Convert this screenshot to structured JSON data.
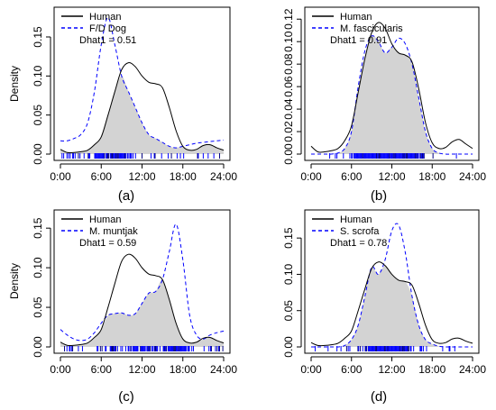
{
  "figure": {
    "panel_labels": [
      "(a)",
      "(b)",
      "(c)",
      "(d)"
    ],
    "colors": {
      "human": "#000000",
      "species": "#0000ff",
      "overlap_fill": "#d3d3d3",
      "rug": "#0000ff"
    }
  },
  "chart_data": [
    {
      "type": "line",
      "ylabel": "Density",
      "xticks": [
        "0:00",
        "6:00",
        "12:00",
        "18:00",
        "24:00"
      ],
      "xlim": [
        0,
        24
      ],
      "ylim": [
        0,
        0.18
      ],
      "yticks": [
        0.0,
        0.05,
        0.1,
        0.15
      ],
      "ytick_labels": [
        "0.00",
        "0.05",
        "0.10",
        "0.15"
      ],
      "legend": [
        "Human",
        "F/D Dog",
        "Dhat1 = 0.51"
      ],
      "grid": false,
      "x": [
        0,
        1,
        2,
        3,
        4,
        5,
        6,
        7,
        8,
        9,
        10,
        11,
        12,
        13,
        14,
        15,
        16,
        17,
        18,
        19,
        20,
        21,
        22,
        23,
        24
      ],
      "series": [
        {
          "name": "Human",
          "values": [
            0.006,
            0.002,
            0.002,
            0.003,
            0.005,
            0.012,
            0.022,
            0.05,
            0.08,
            0.108,
            0.117,
            0.112,
            0.1,
            0.092,
            0.09,
            0.085,
            0.06,
            0.03,
            0.01,
            0.005,
            0.006,
            0.011,
            0.012,
            0.008,
            0.005
          ]
        },
        {
          "name": "F/D Dog",
          "values": [
            0.017,
            0.017,
            0.02,
            0.025,
            0.04,
            0.08,
            0.14,
            0.175,
            0.14,
            0.1,
            0.08,
            0.06,
            0.04,
            0.025,
            0.02,
            0.015,
            0.01,
            0.008,
            0.01,
            0.012,
            0.014,
            0.015,
            0.016,
            0.017,
            0.018
          ]
        }
      ]
    },
    {
      "type": "line",
      "ylabel": "",
      "xticks": [
        "0:00",
        "6:00",
        "12:00",
        "18:00",
        "24:00"
      ],
      "xlim": [
        0,
        24
      ],
      "ylim": [
        0,
        0.125
      ],
      "yticks": [
        0.0,
        0.02,
        0.04,
        0.06,
        0.08,
        0.1,
        0.12
      ],
      "ytick_labels": [
        "0.00",
        "0.02",
        "0.04",
        "0.06",
        "0.08",
        "0.10",
        "0.12"
      ],
      "legend": [
        "Human",
        "M. fascicularis",
        "Dhat1 = 0.91"
      ],
      "grid": false,
      "x": [
        0,
        1,
        2,
        3,
        4,
        5,
        6,
        7,
        8,
        9,
        10,
        11,
        12,
        13,
        14,
        15,
        16,
        17,
        18,
        19,
        20,
        21,
        22,
        23,
        24
      ],
      "series": [
        {
          "name": "Human",
          "values": [
            0.007,
            0.002,
            0.002,
            0.003,
            0.005,
            0.012,
            0.025,
            0.055,
            0.085,
            0.108,
            0.117,
            0.112,
            0.098,
            0.09,
            0.088,
            0.082,
            0.058,
            0.028,
            0.01,
            0.005,
            0.006,
            0.011,
            0.013,
            0.009,
            0.005
          ]
        },
        {
          "name": "M. fascicularis",
          "values": [
            0.0,
            0.0,
            0.0,
            0.0,
            0.001,
            0.005,
            0.02,
            0.06,
            0.092,
            0.105,
            0.1,
            0.09,
            0.095,
            0.103,
            0.098,
            0.08,
            0.05,
            0.02,
            0.005,
            0.001,
            0.0,
            0.0,
            0.0,
            0.0,
            0.0
          ]
        }
      ]
    },
    {
      "type": "line",
      "ylabel": "Density",
      "xticks": [
        "0:00",
        "6:00",
        "12:00",
        "18:00",
        "24:00"
      ],
      "xlim": [
        0,
        24
      ],
      "ylim": [
        0,
        0.165
      ],
      "yticks": [
        0.0,
        0.05,
        0.1,
        0.15
      ],
      "ytick_labels": [
        "0.00",
        "0.05",
        "0.10",
        "0.15"
      ],
      "legend": [
        "Human",
        "M. muntjak",
        "Dhat1 = 0.59"
      ],
      "grid": false,
      "x": [
        0,
        1,
        2,
        3,
        4,
        5,
        6,
        7,
        8,
        9,
        10,
        11,
        12,
        13,
        14,
        15,
        16,
        17,
        18,
        19,
        20,
        21,
        22,
        23,
        24
      ],
      "series": [
        {
          "name": "Human",
          "values": [
            0.006,
            0.002,
            0.002,
            0.003,
            0.005,
            0.012,
            0.022,
            0.05,
            0.08,
            0.108,
            0.117,
            0.112,
            0.1,
            0.092,
            0.09,
            0.085,
            0.06,
            0.03,
            0.01,
            0.005,
            0.006,
            0.011,
            0.012,
            0.008,
            0.005
          ]
        },
        {
          "name": "M. muntjak",
          "values": [
            0.022,
            0.015,
            0.01,
            0.008,
            0.01,
            0.018,
            0.03,
            0.04,
            0.042,
            0.043,
            0.04,
            0.042,
            0.055,
            0.068,
            0.07,
            0.085,
            0.12,
            0.155,
            0.11,
            0.04,
            0.015,
            0.01,
            0.015,
            0.018,
            0.02
          ]
        }
      ]
    },
    {
      "type": "line",
      "ylabel": "",
      "xticks": [
        "0:00",
        "6:00",
        "12:00",
        "18:00",
        "24:00"
      ],
      "xlim": [
        0,
        24
      ],
      "ylim": [
        0,
        0.18
      ],
      "yticks": [
        0.0,
        0.05,
        0.1,
        0.15
      ],
      "ytick_labels": [
        "0.00",
        "0.05",
        "0.10",
        "0.15"
      ],
      "legend": [
        "Human",
        "S. scrofa",
        "Dhat1 = 0.78"
      ],
      "grid": false,
      "x": [
        0,
        1,
        2,
        3,
        4,
        5,
        6,
        7,
        8,
        9,
        10,
        11,
        12,
        13,
        14,
        15,
        16,
        17,
        18,
        19,
        20,
        21,
        22,
        23,
        24
      ],
      "series": [
        {
          "name": "Human",
          "values": [
            0.006,
            0.002,
            0.002,
            0.003,
            0.005,
            0.012,
            0.022,
            0.05,
            0.08,
            0.108,
            0.117,
            0.112,
            0.1,
            0.092,
            0.09,
            0.085,
            0.06,
            0.03,
            0.01,
            0.005,
            0.006,
            0.011,
            0.012,
            0.008,
            0.005
          ]
        },
        {
          "name": "S. scrofa",
          "values": [
            0.0,
            0.0,
            0.0,
            0.0,
            0.0,
            0.002,
            0.01,
            0.03,
            0.07,
            0.11,
            0.1,
            0.12,
            0.16,
            0.168,
            0.13,
            0.07,
            0.03,
            0.01,
            0.004,
            0.001,
            0.0,
            0.0,
            0.0,
            0.0,
            0.0
          ]
        }
      ]
    }
  ]
}
